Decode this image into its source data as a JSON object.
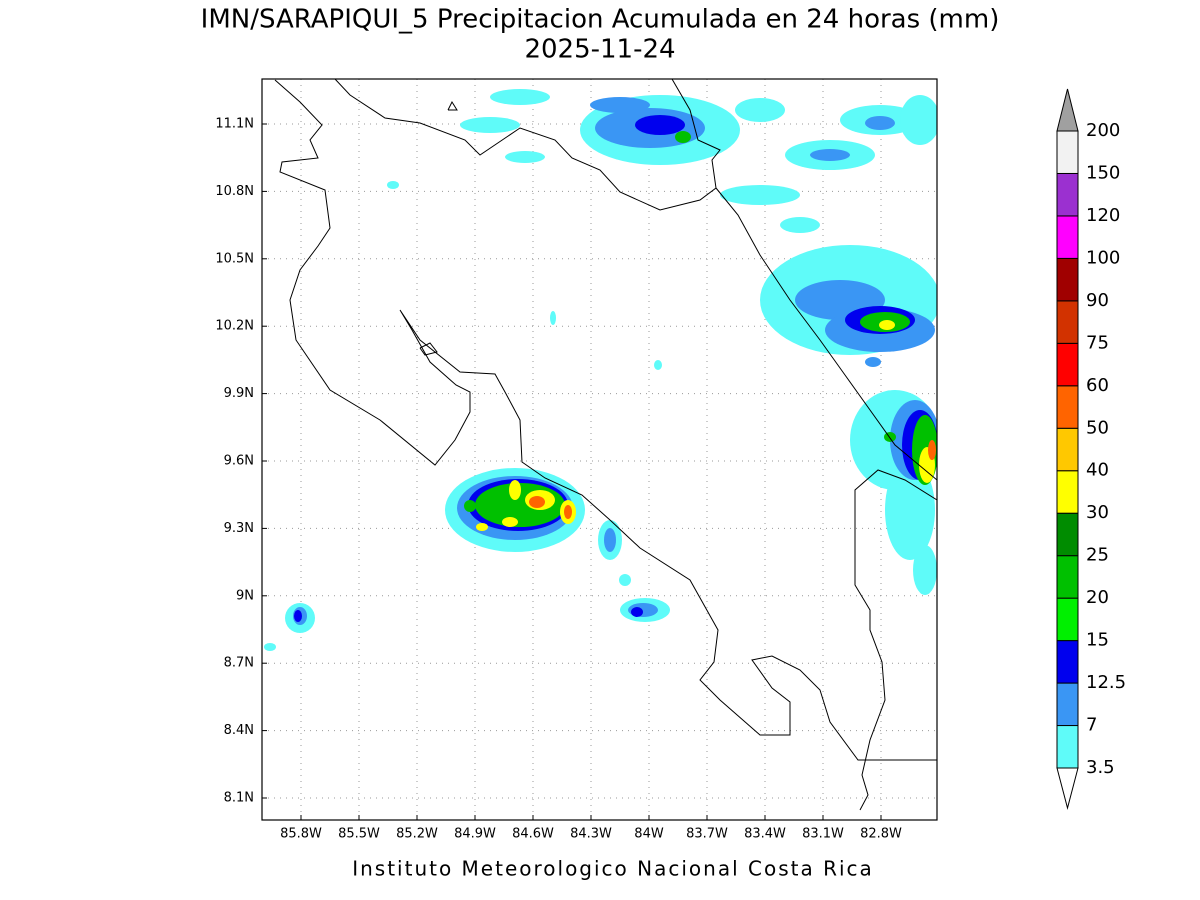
{
  "title": "IMN/SARAPIQUI_5 Precipitacion Acumulada en 24 horas (mm)",
  "subtitle": "2025-11-24",
  "map": {
    "lat_labels": [
      "11.1N",
      "10.8N",
      "10.5N",
      "10.2N",
      "9.9N",
      "9.6N",
      "9.3N",
      "9N",
      "8.7N",
      "8.4N",
      "8.1N"
    ],
    "lon_labels": [
      "85.8W",
      "85.5W",
      "85.2W",
      "84.9W",
      "84.6W",
      "84.3W",
      "84W",
      "83.7W",
      "83.4W",
      "83.1W",
      "82.8W"
    ]
  },
  "legend": {
    "levels": [
      3.5,
      7,
      12.5,
      15,
      20,
      25,
      30,
      40,
      50,
      60,
      75,
      90,
      100,
      120,
      150,
      200
    ],
    "colors": [
      "#5ffbf9",
      "#3a96f4",
      "#0000ee",
      "#00f000",
      "#00c000",
      "#008c00",
      "#ffff00",
      "#ffc800",
      "#ff6400",
      "#ff0000",
      "#d23200",
      "#a00000",
      "#ff00ff",
      "#9b30d0",
      "#f2f2f2"
    ],
    "under_color": "#ffffff",
    "over_color": "#a0a0a0"
  },
  "footer": "Instituto Meteorologico Nacional Costa Rica"
}
